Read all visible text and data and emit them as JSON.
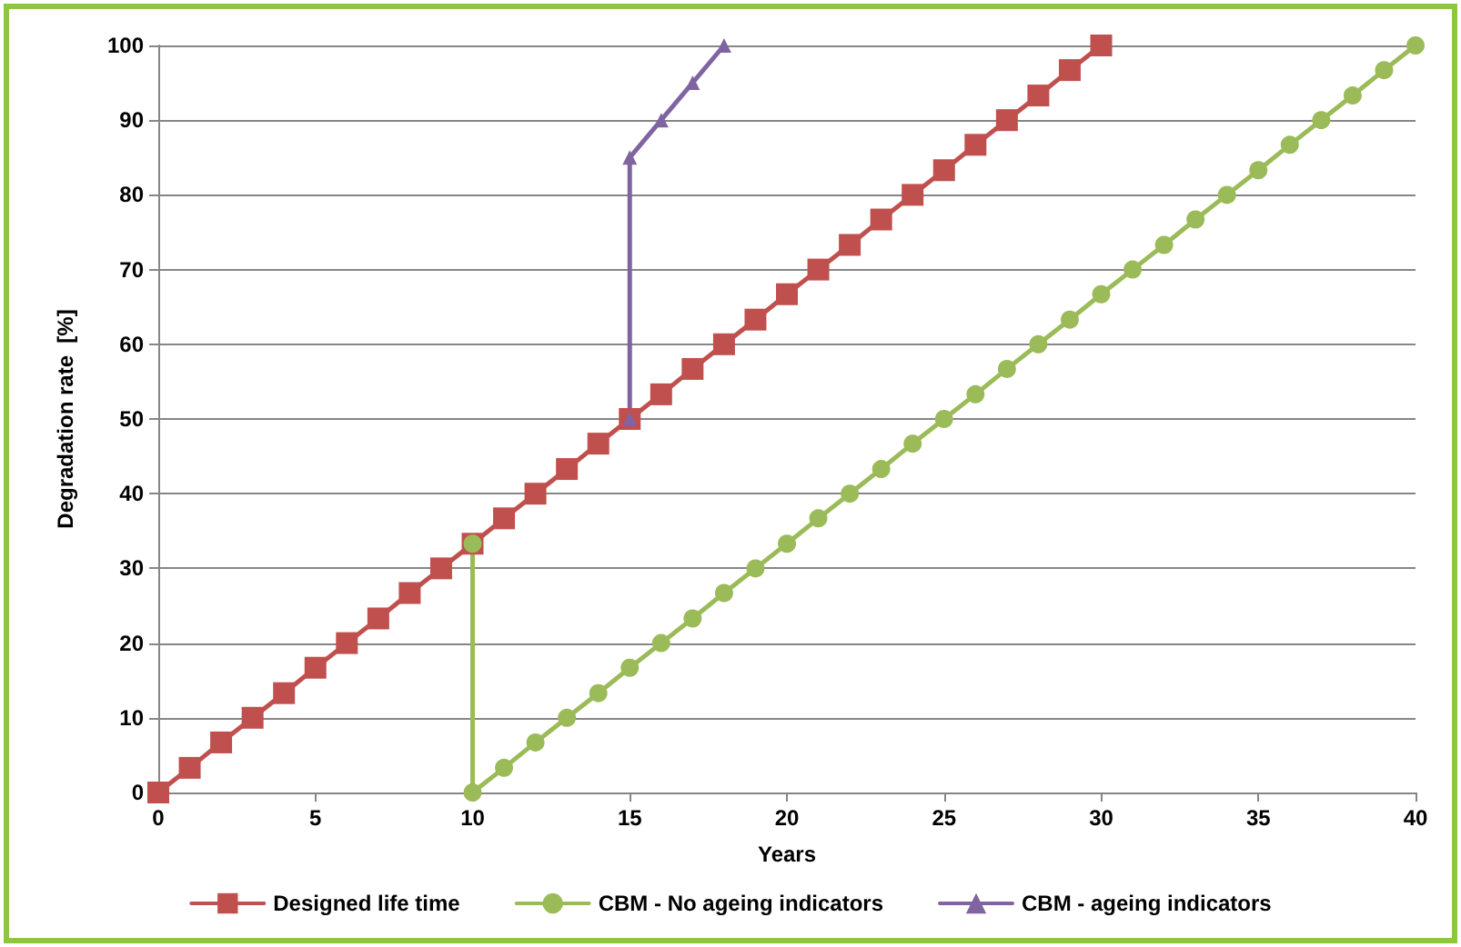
{
  "chart_data": {
    "type": "line",
    "xlabel": "Years",
    "ylabel": "Degradation rate  [%]",
    "xlim": [
      0,
      40
    ],
    "xticks": [
      0,
      5,
      10,
      15,
      20,
      25,
      30,
      35,
      40
    ],
    "ylim": [
      0,
      100
    ],
    "yticks": [
      0,
      10,
      20,
      30,
      40,
      50,
      60,
      70,
      80,
      90,
      100
    ],
    "grid": "y",
    "legend": "bottom",
    "line_style": "solid",
    "series": [
      {
        "name": "Designed life time",
        "color": "#c0504d",
        "marker": "square",
        "x": [
          0,
          1,
          2,
          3,
          4,
          5,
          6,
          7,
          8,
          9,
          10,
          11,
          12,
          13,
          14,
          15,
          16,
          17,
          18,
          19,
          20,
          21,
          22,
          23,
          24,
          25,
          26,
          27,
          28,
          29,
          30
        ],
        "values": [
          0,
          3.3,
          6.7,
          10,
          13.3,
          16.7,
          20,
          23.3,
          26.7,
          30,
          33.3,
          36.7,
          40,
          43.3,
          46.7,
          50,
          53.3,
          56.7,
          60,
          63.3,
          66.7,
          70,
          73.3,
          76.7,
          80,
          83.3,
          86.7,
          90,
          93.3,
          96.7,
          100
        ]
      },
      {
        "name": "CBM - No ageing indicators",
        "color": "#9bbb59",
        "marker": "circle",
        "x": [
          10,
          10,
          11,
          12,
          13,
          14,
          15,
          16,
          17,
          18,
          19,
          20,
          21,
          22,
          23,
          24,
          25,
          26,
          27,
          28,
          29,
          30,
          31,
          32,
          33,
          34,
          35,
          36,
          37,
          38,
          39,
          40
        ],
        "values": [
          33.3,
          0,
          3.3,
          6.7,
          10,
          13.3,
          16.7,
          20,
          23.3,
          26.7,
          30,
          33.3,
          36.7,
          40,
          43.3,
          46.7,
          50,
          53.3,
          56.7,
          60,
          63.3,
          66.7,
          70,
          73.3,
          76.7,
          80,
          83.3,
          86.7,
          90,
          93.3,
          96.7,
          100
        ]
      },
      {
        "name": "CBM - ageing indicators",
        "color": "#8064a2",
        "marker": "triangle",
        "x": [
          15,
          15,
          16,
          17,
          18
        ],
        "values": [
          50,
          85,
          90,
          95,
          100
        ]
      }
    ]
  }
}
